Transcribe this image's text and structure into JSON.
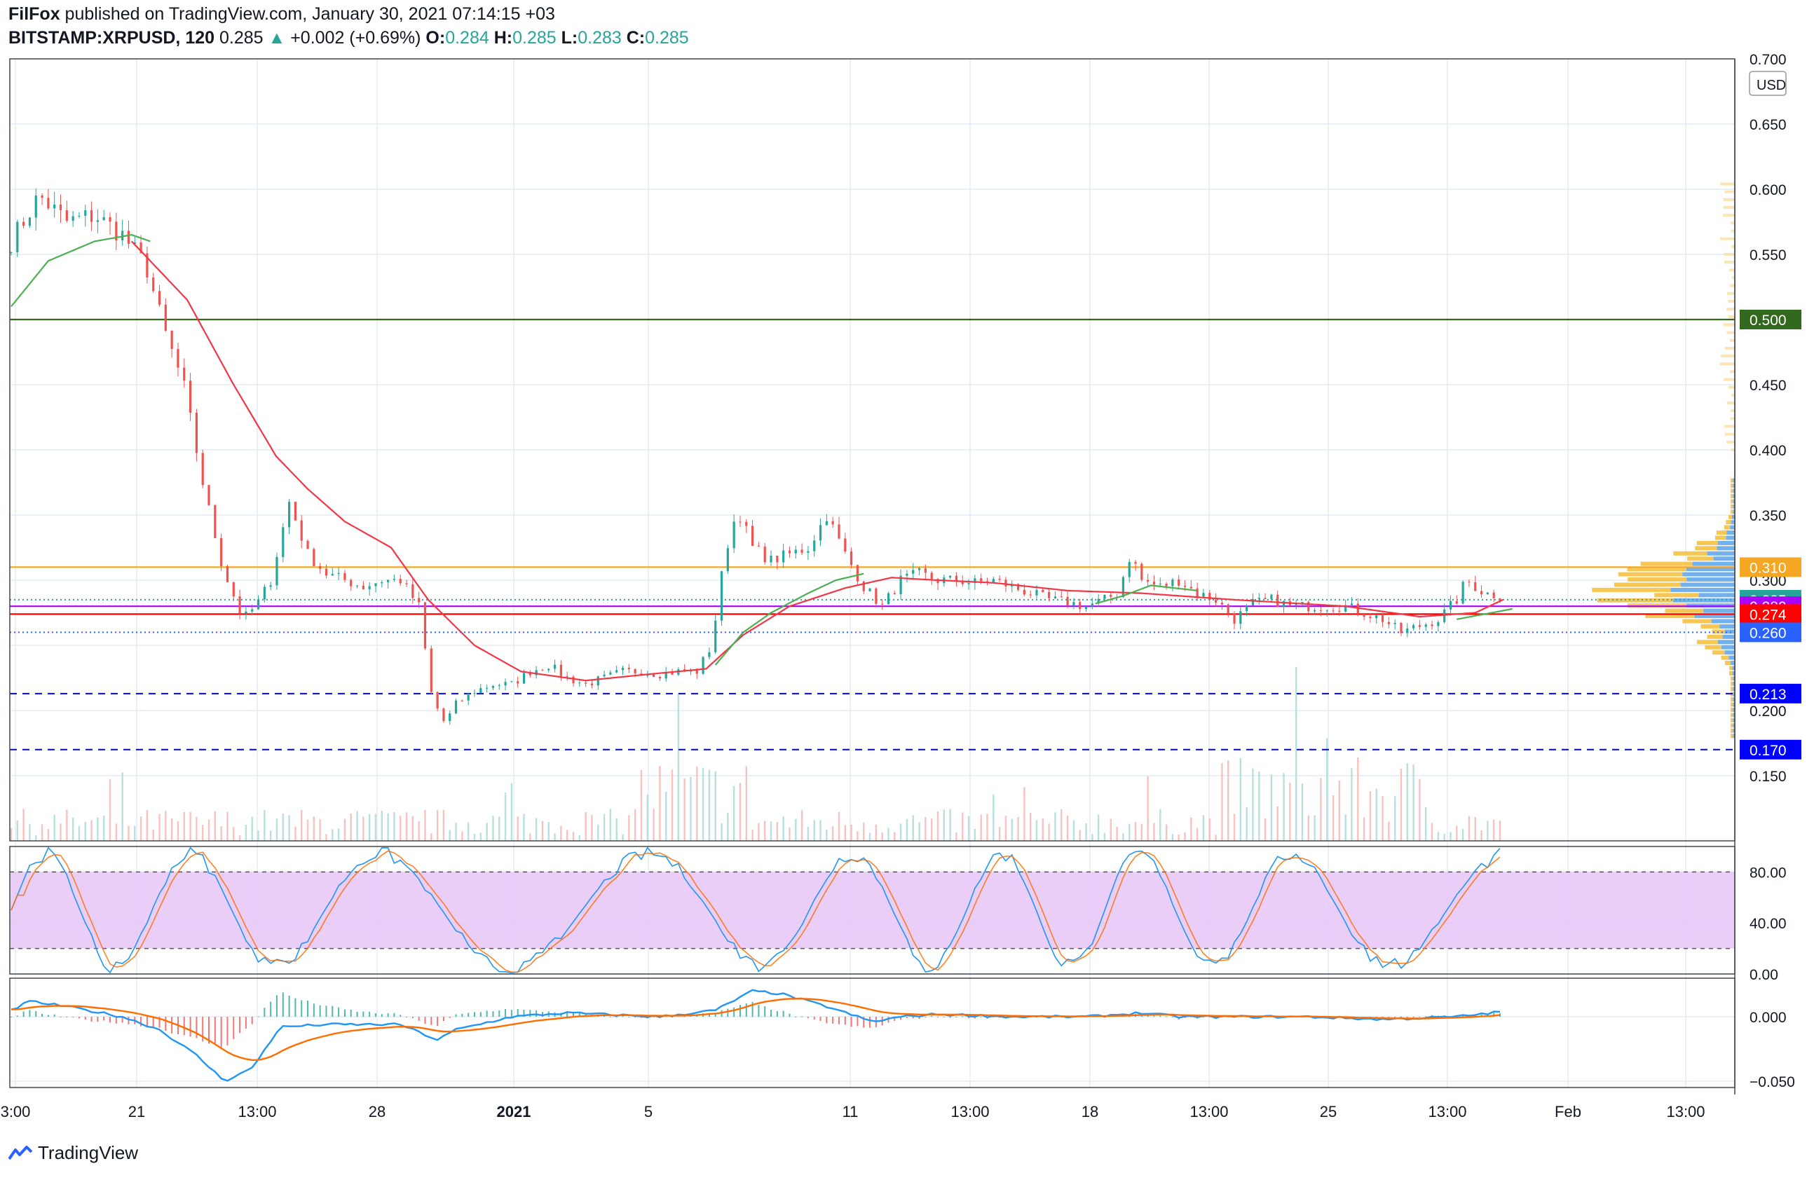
{
  "header": {
    "author": "FilFox",
    "published_text": " published on TradingView.com, January 30, 2021 07:14:15 +03",
    "symbol": "BITSTAMP:XRPUSD, 120",
    "last": "0.285",
    "arrow": "▲",
    "change": "+0.002 (+0.69%)",
    "o_label": "O:",
    "o": "0.284",
    "h_label": "H:",
    "h": "0.285",
    "l_label": "L:",
    "l": "0.283",
    "c_label": "C:",
    "c": "0.285"
  },
  "footer": {
    "brand": "TradingView"
  },
  "colors": {
    "up": "#26a69a",
    "down": "#ef5350",
    "grid": "#e3ecf3",
    "text": "#131722",
    "ma_red": "#f23645",
    "ma_green": "#4caf50",
    "line_500": "#33691e",
    "line_310": "#f5a623",
    "level_blue": "#0000ff",
    "rsi_fill": "#e6c6f7",
    "macd": "#2196f3",
    "signal": "#ff6d00"
  },
  "chart_data": [
    {
      "type": "candlestick",
      "name": "price",
      "currency": "USD",
      "y_ticks": [
        "0.700",
        "0.650",
        "0.600",
        "0.550",
        "0.450",
        "0.400",
        "0.350",
        "0.300",
        "0.200",
        "0.150"
      ],
      "ylim": [
        0.1,
        0.7
      ],
      "x_ticks": [
        "3:00",
        "21",
        "13:00",
        "28",
        "2021",
        "5",
        "11",
        "13:00",
        "18",
        "13:00",
        "25",
        "13:00",
        "Feb",
        "13:00"
      ],
      "price_anchors": [
        [
          0,
          0.56
        ],
        [
          1.5,
          0.595
        ],
        [
          3,
          0.575
        ],
        [
          4.5,
          0.58
        ],
        [
          6,
          0.565
        ],
        [
          7.3,
          0.54
        ],
        [
          8.3,
          0.49
        ],
        [
          9.3,
          0.45
        ],
        [
          10.4,
          0.37
        ],
        [
          11.4,
          0.31
        ],
        [
          12.5,
          0.27
        ],
        [
          13.2,
          0.28
        ],
        [
          14,
          0.3
        ],
        [
          15,
          0.36
        ],
        [
          16,
          0.32
        ],
        [
          17,
          0.305
        ],
        [
          18,
          0.3
        ],
        [
          19,
          0.295
        ],
        [
          20,
          0.3
        ],
        [
          21,
          0.3
        ],
        [
          22,
          0.28
        ],
        [
          22.7,
          0.21
        ],
        [
          23.4,
          0.19
        ],
        [
          24,
          0.205
        ],
        [
          25,
          0.215
        ],
        [
          26,
          0.22
        ],
        [
          27,
          0.22
        ],
        [
          28,
          0.23
        ],
        [
          29,
          0.235
        ],
        [
          30,
          0.225
        ],
        [
          31,
          0.22
        ],
        [
          32,
          0.225
        ],
        [
          33,
          0.23
        ],
        [
          34,
          0.23
        ],
        [
          35,
          0.228
        ],
        [
          36,
          0.23
        ],
        [
          37,
          0.23
        ],
        [
          37.8,
          0.25
        ],
        [
          38.5,
          0.32
        ],
        [
          39.2,
          0.355
        ],
        [
          40,
          0.325
        ],
        [
          41,
          0.315
        ],
        [
          42,
          0.32
        ],
        [
          43,
          0.325
        ],
        [
          44,
          0.35
        ],
        [
          45,
          0.32
        ],
        [
          46,
          0.295
        ],
        [
          47,
          0.28
        ],
        [
          48,
          0.3
        ],
        [
          49,
          0.305
        ],
        [
          50,
          0.3
        ],
        [
          51,
          0.3
        ],
        [
          52,
          0.298
        ],
        [
          53,
          0.3
        ],
        [
          54,
          0.295
        ],
        [
          55,
          0.29
        ],
        [
          56,
          0.285
        ],
        [
          57,
          0.283
        ],
        [
          58,
          0.28
        ],
        [
          59,
          0.285
        ],
        [
          59.7,
          0.29
        ],
        [
          60.4,
          0.32
        ],
        [
          61,
          0.3
        ],
        [
          62,
          0.295
        ],
        [
          63,
          0.3
        ],
        [
          64,
          0.29
        ],
        [
          65,
          0.285
        ],
        [
          66,
          0.27
        ],
        [
          67,
          0.282
        ],
        [
          68,
          0.285
        ],
        [
          69,
          0.28
        ],
        [
          70,
          0.28
        ],
        [
          71,
          0.28
        ],
        [
          72,
          0.28
        ],
        [
          73,
          0.275
        ],
        [
          74,
          0.27
        ],
        [
          75,
          0.26
        ],
        [
          76,
          0.265
        ],
        [
          77,
          0.27
        ],
        [
          78,
          0.285
        ],
        [
          78.5,
          0.3
        ],
        [
          79.5,
          0.29
        ],
        [
          80.5,
          0.288
        ]
      ],
      "moving_averages": [
        {
          "color": "ma_red",
          "anchors": [
            [
              6.5,
              0.56
            ],
            [
              9.5,
              0.515
            ],
            [
              12,
              0.45
            ],
            [
              14.3,
              0.395
            ],
            [
              16,
              0.37
            ],
            [
              18,
              0.345
            ],
            [
              20.5,
              0.325
            ],
            [
              22.5,
              0.285
            ],
            [
              25,
              0.25
            ],
            [
              27.5,
              0.23
            ],
            [
              31,
              0.223
            ],
            [
              34.5,
              0.228
            ],
            [
              37.5,
              0.232
            ],
            [
              39.5,
              0.258
            ],
            [
              42,
              0.28
            ],
            [
              45,
              0.294
            ],
            [
              47.5,
              0.302
            ],
            [
              50,
              0.3
            ],
            [
              53,
              0.298
            ],
            [
              57,
              0.292
            ],
            [
              61,
              0.29
            ],
            [
              66,
              0.285
            ],
            [
              72,
              0.28
            ],
            [
              76,
              0.272
            ],
            [
              79,
              0.275
            ],
            [
              80.5,
              0.285
            ]
          ]
        },
        {
          "color": "ma_green",
          "anchors": [
            [
              0,
              0.51
            ],
            [
              2,
              0.545
            ],
            [
              4.5,
              0.56
            ],
            [
              6.5,
              0.565
            ],
            [
              7.5,
              0.56
            ]
          ]
        },
        {
          "color": "ma_green",
          "anchors": [
            [
              38,
              0.235
            ],
            [
              39.5,
              0.26
            ],
            [
              41,
              0.275
            ],
            [
              43,
              0.29
            ],
            [
              44.5,
              0.3
            ],
            [
              46,
              0.305
            ]
          ]
        },
        {
          "color": "ma_green",
          "anchors": [
            [
              58.5,
              0.282
            ],
            [
              60,
              0.288
            ],
            [
              61.5,
              0.296
            ],
            [
              64,
              0.292
            ]
          ]
        },
        {
          "color": "ma_green",
          "anchors": [
            [
              78,
              0.27
            ],
            [
              79.5,
              0.274
            ],
            [
              81,
              0.278
            ]
          ]
        }
      ],
      "levels": [
        {
          "value": 0.5,
          "label": "0.500",
          "color": "line_500",
          "style": "solid"
        },
        {
          "value": 0.31,
          "label": "0.310",
          "color": "line_310",
          "style": "solid"
        },
        {
          "value": 0.285,
          "label": "0.285",
          "color": "up",
          "style": "dotted"
        },
        {
          "value": 0.28,
          "label": "0.280",
          "color": "#aa00ff",
          "style": "solid"
        },
        {
          "value": 0.274,
          "label": "0.274",
          "color": "#ff0000",
          "style": "solid"
        },
        {
          "value": 0.26,
          "label": "0.260",
          "color": "#2962ff",
          "style": "dotted"
        },
        {
          "value": 0.213,
          "label": "0.213",
          "color": "level_blue",
          "style": "dashed"
        },
        {
          "value": 0.17,
          "label": "0.170",
          "color": "level_blue",
          "style": "dashed"
        }
      ]
    },
    {
      "type": "line",
      "name": "stoch-rsi",
      "y_ticks": [
        "80.00",
        "40.00",
        "0.00"
      ],
      "ylim": [
        0,
        100
      ],
      "band": [
        20,
        80
      ]
    },
    {
      "type": "histogram",
      "name": "macd",
      "y_ticks": [
        "0.000",
        "−0.050"
      ],
      "ylim": [
        -0.055,
        0.03
      ]
    }
  ]
}
